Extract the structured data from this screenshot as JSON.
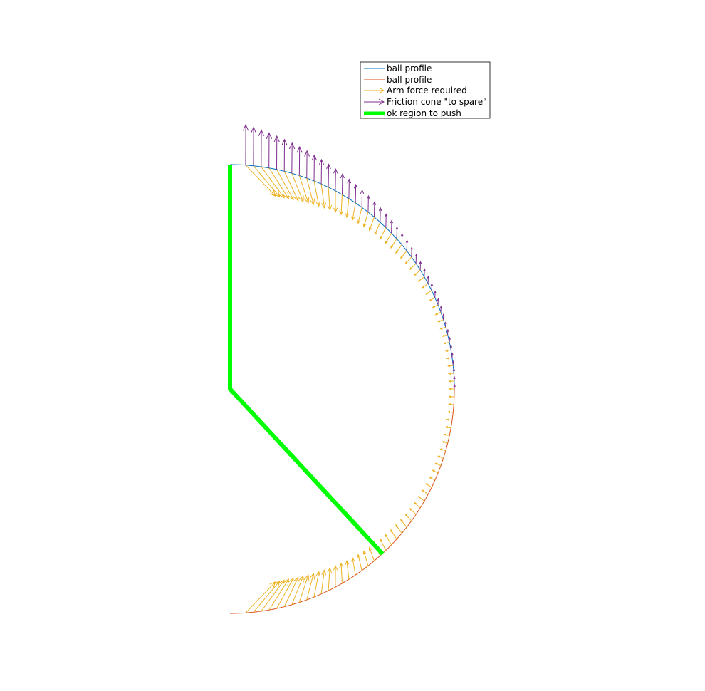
{
  "colors": {
    "ball_profile_1": "#0072BD",
    "ball_profile_2": "#D95319",
    "arm_force": "#EDB120",
    "friction_cone": "#7E2F8E",
    "ok_region": "#00FF00",
    "legend_border": "#000000"
  },
  "chart_data": {
    "type": "vector-field",
    "title": "",
    "xlabel": "",
    "ylabel": "",
    "axes_visible": false,
    "grid": false,
    "aspect": "equal",
    "xlim": [
      -1,
      1
    ],
    "ylim": [
      -1.04,
      1.04
    ],
    "legend_position": "top-right",
    "legend": [
      {
        "label": "ball profile",
        "style": "line",
        "color": "#0072BD"
      },
      {
        "label": "ball profile",
        "style": "line",
        "color": "#D95319"
      },
      {
        "label": "Arm force required",
        "style": "arrow",
        "color": "#EDB120"
      },
      {
        "label": "Friction cone \"to spare\"",
        "style": "arrow",
        "color": "#7E2F8E"
      },
      {
        "label": "ok region to push",
        "style": "thick-line",
        "color": "#00FF00"
      }
    ],
    "series": [
      {
        "name": "ball profile",
        "kind": "curve",
        "color": "#0072BD",
        "description": "upper quarter arc of unit circle, angle 0 to 90 deg",
        "angle_range_deg": [
          0,
          90
        ]
      },
      {
        "name": "ball profile",
        "kind": "curve",
        "color": "#D95319",
        "description": "lower quarter arc of unit circle, angle -90 to 0 deg",
        "angle_range_deg": [
          -90,
          0
        ]
      },
      {
        "name": "Arm force required",
        "kind": "arrows",
        "color": "#EDB120",
        "angle_step_deg": 2,
        "angle_range_deg": [
          -86,
          86
        ]
      },
      {
        "name": "Friction cone \"to spare\"",
        "kind": "arrows",
        "color": "#7E2F8E",
        "angle_step_deg": 2,
        "angle_range_deg": [
          0,
          86
        ]
      },
      {
        "name": "ok region to push",
        "kind": "polyline",
        "color": "#00FF00",
        "x": [
          0,
          0,
          0.68
        ],
        "y": [
          1,
          0,
          -0.735
        ]
      }
    ]
  }
}
